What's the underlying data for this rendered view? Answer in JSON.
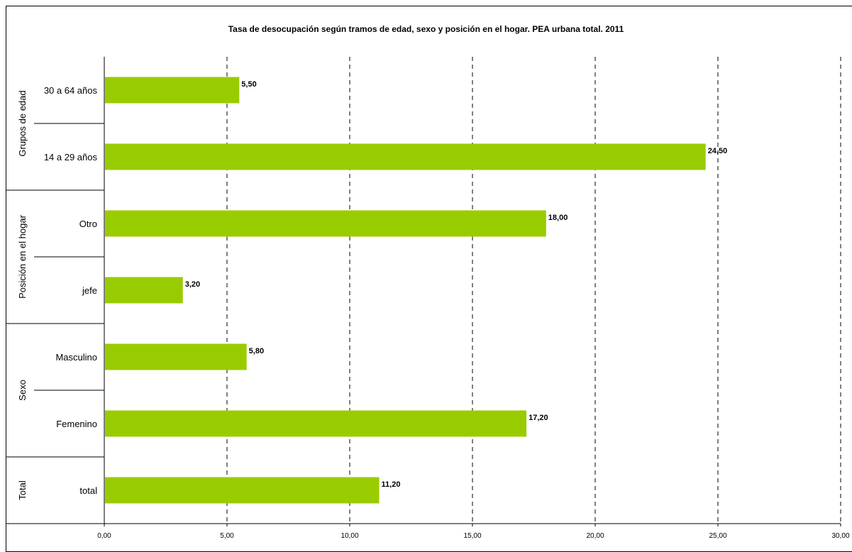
{
  "chart_data": {
    "type": "bar",
    "orientation": "horizontal",
    "title": "Tasa de desocupación según  tramos de edad, sexo y posición en el hogar. PEA urbana total. 2011",
    "groups": [
      {
        "name": "Grupos de edad",
        "categories": [
          "30 a 64 años",
          "14 a 29 años"
        ]
      },
      {
        "name": "Posición en el hogar",
        "categories": [
          "Otro",
          "jefe"
        ]
      },
      {
        "name": "Sexo",
        "categories": [
          "Masculino",
          "Femenino"
        ]
      },
      {
        "name": "Total",
        "categories": [
          "total"
        ]
      }
    ],
    "categories": [
      "30 a 64 años",
      "14 a 29 años",
      "Otro",
      "jefe",
      "Masculino",
      "Femenino",
      "total"
    ],
    "values": [
      5.5,
      24.5,
      18.0,
      3.2,
      5.8,
      17.2,
      11.2
    ],
    "value_labels": [
      "5,50",
      "24,50",
      "18,00",
      "3,20",
      "5,80",
      "17,20",
      "11,20"
    ],
    "xlim": [
      0,
      30
    ],
    "x_ticks": [
      "0,00",
      "5,00",
      "10,00",
      "15,00",
      "20,00",
      "25,00",
      "30,00"
    ],
    "grid": "vertical-dashed",
    "bar_color": "#99cc00",
    "legend": "none"
  }
}
